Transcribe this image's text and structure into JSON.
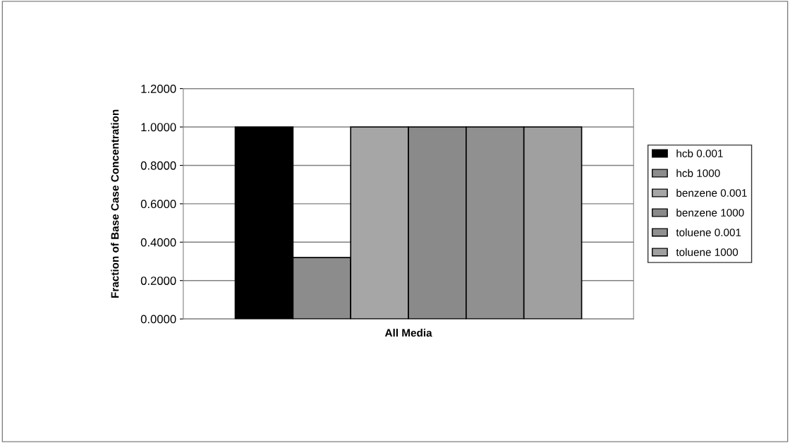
{
  "chart_data": {
    "type": "bar",
    "ylabel": "Fraction of Base Case Concentration",
    "categories": [
      "All Media"
    ],
    "series": [
      {
        "name": "hcb 0.001",
        "color": "#000000",
        "values": [
          1.0
        ]
      },
      {
        "name": "hcb 1000",
        "color": "#8c8c8c",
        "values": [
          0.32
        ]
      },
      {
        "name": "benzene 0.001",
        "color": "#a6a6a6",
        "values": [
          1.0
        ]
      },
      {
        "name": "benzene 1000",
        "color": "#8a8a8a",
        "values": [
          1.0
        ]
      },
      {
        "name": "toluene 0.001",
        "color": "#909090",
        "values": [
          1.0
        ]
      },
      {
        "name": "toluene 1000",
        "color": "#a0a0a0",
        "values": [
          1.0
        ]
      }
    ],
    "ylim": [
      0,
      1.2
    ],
    "yticks": [
      {
        "value": 0,
        "label": "0.0000"
      },
      {
        "value": 0.2,
        "label": "0.2000"
      },
      {
        "value": 0.4,
        "label": "0.4000"
      },
      {
        "value": 0.6,
        "label": "0.6000"
      },
      {
        "value": 0.8,
        "label": "0.8000"
      },
      {
        "value": 1.0,
        "label": "1.0000"
      },
      {
        "value": 1.2,
        "label": "1.2000"
      }
    ],
    "grid": "y",
    "legend": "right"
  }
}
